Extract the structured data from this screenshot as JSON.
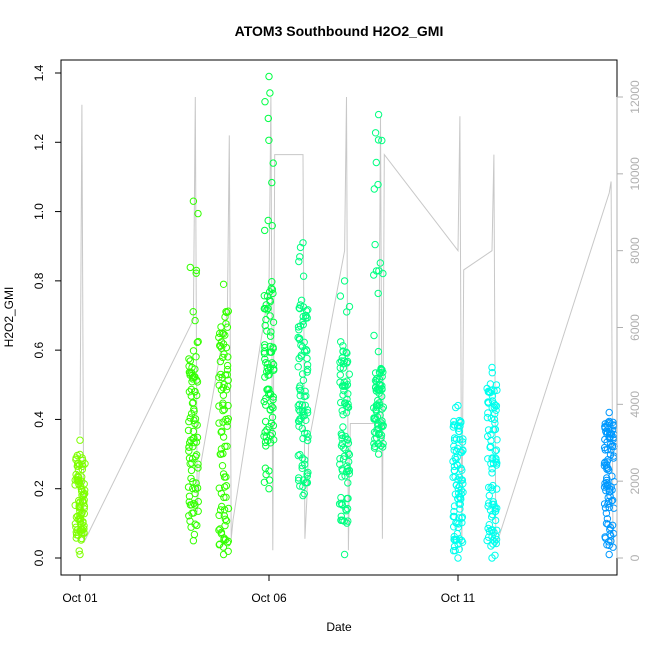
{
  "chart_data": {
    "type": "scatter",
    "title": "ATOM3 Southbound H2O2_GMI",
    "xlabel": "Date",
    "ylabel": "H2O2_GMI",
    "x_ticks": [
      "Oct 01",
      "Oct 06",
      "Oct 11"
    ],
    "x_tick_days": [
      1,
      6,
      11
    ],
    "xlim_days": [
      0.5,
      15.5
    ],
    "y_ticks": [
      "0.0",
      "0.2",
      "0.4",
      "0.6",
      "0.8",
      "1.0",
      "1.2",
      "1.4"
    ],
    "ylim": [
      0,
      1.4
    ],
    "y2_ticks": [
      "0",
      "2000",
      "4000",
      "6000",
      "8000",
      "10000",
      "12000"
    ],
    "y2lim": [
      0,
      12000
    ],
    "y2_label": "",
    "grid": false,
    "legend": "none",
    "secondary_series": {
      "name": "",
      "color": "#c8c8c8",
      "description_type": "altitude-trace",
      "points": [
        [
          1.0,
          3200
        ],
        [
          1.05,
          11800
        ],
        [
          1.1,
          400
        ],
        [
          4.0,
          6200
        ],
        [
          4.05,
          12000
        ],
        [
          4.1,
          1200
        ],
        [
          4.15,
          2200
        ],
        [
          4.9,
          6400
        ],
        [
          4.95,
          11000
        ],
        [
          5.0,
          500
        ],
        [
          5.05,
          1000
        ],
        [
          6.0,
          7000
        ],
        [
          6.05,
          12000
        ],
        [
          6.1,
          200
        ],
        [
          6.15,
          10500
        ],
        [
          6.9,
          10500
        ],
        [
          6.95,
          500
        ],
        [
          7.0,
          1500
        ],
        [
          7.05,
          3000
        ],
        [
          8.0,
          8000
        ],
        [
          8.05,
          12000
        ],
        [
          8.1,
          200
        ],
        [
          8.15,
          3500
        ],
        [
          8.9,
          3500
        ],
        [
          8.95,
          11500
        ],
        [
          9.0,
          500
        ],
        [
          9.05,
          10500
        ],
        [
          11.0,
          8000
        ],
        [
          11.05,
          11500
        ],
        [
          11.1,
          200
        ],
        [
          11.15,
          7500
        ],
        [
          11.9,
          8000
        ],
        [
          11.95,
          10500
        ],
        [
          12.0,
          300
        ],
        [
          15.0,
          9500
        ],
        [
          15.05,
          9800
        ],
        [
          15.1,
          300
        ]
      ]
    },
    "series": [
      {
        "name": "",
        "color": "#7fff00",
        "clusters": [
          {
            "day": 1.0,
            "ymin": 0.01,
            "ymax": 0.34,
            "dense_min": 0.05,
            "dense_max": 0.3
          }
        ]
      },
      {
        "name": "",
        "color": "#33ff00",
        "clusters": [
          {
            "day": 4.0,
            "ymin": 0.05,
            "ymax": 1.03,
            "dense_min": 0.08,
            "dense_max": 0.62
          },
          {
            "day": 4.8,
            "ymin": 0.01,
            "ymax": 0.79,
            "dense_min": 0.03,
            "dense_max": 0.72
          }
        ]
      },
      {
        "name": "",
        "color": "#00ff44",
        "clusters": [
          {
            "day": 6.0,
            "ymin": 0.2,
            "ymax": 1.39,
            "dense_min": 0.22,
            "dense_max": 0.8
          }
        ]
      },
      {
        "name": "",
        "color": "#00ff80",
        "clusters": [
          {
            "day": 6.9,
            "ymin": 0.18,
            "ymax": 0.91,
            "dense_min": 0.2,
            "dense_max": 0.75
          },
          {
            "day": 8.0,
            "ymin": 0.01,
            "ymax": 0.8,
            "dense_min": 0.1,
            "dense_max": 0.62
          },
          {
            "day": 8.9,
            "ymin": 0.3,
            "ymax": 1.28,
            "dense_min": 0.32,
            "dense_max": 0.55
          }
        ]
      },
      {
        "name": "",
        "color": "#00ffee",
        "clusters": [
          {
            "day": 11.0,
            "ymin": 0.0,
            "ymax": 0.44,
            "dense_min": 0.02,
            "dense_max": 0.4
          },
          {
            "day": 11.9,
            "ymin": 0.0,
            "ymax": 0.55,
            "dense_min": 0.02,
            "dense_max": 0.5
          }
        ]
      },
      {
        "name": "",
        "color": "#0099ff",
        "clusters": [
          {
            "day": 15.0,
            "ymin": 0.01,
            "ymax": 0.42,
            "dense_min": 0.03,
            "dense_max": 0.4
          }
        ]
      }
    ]
  }
}
